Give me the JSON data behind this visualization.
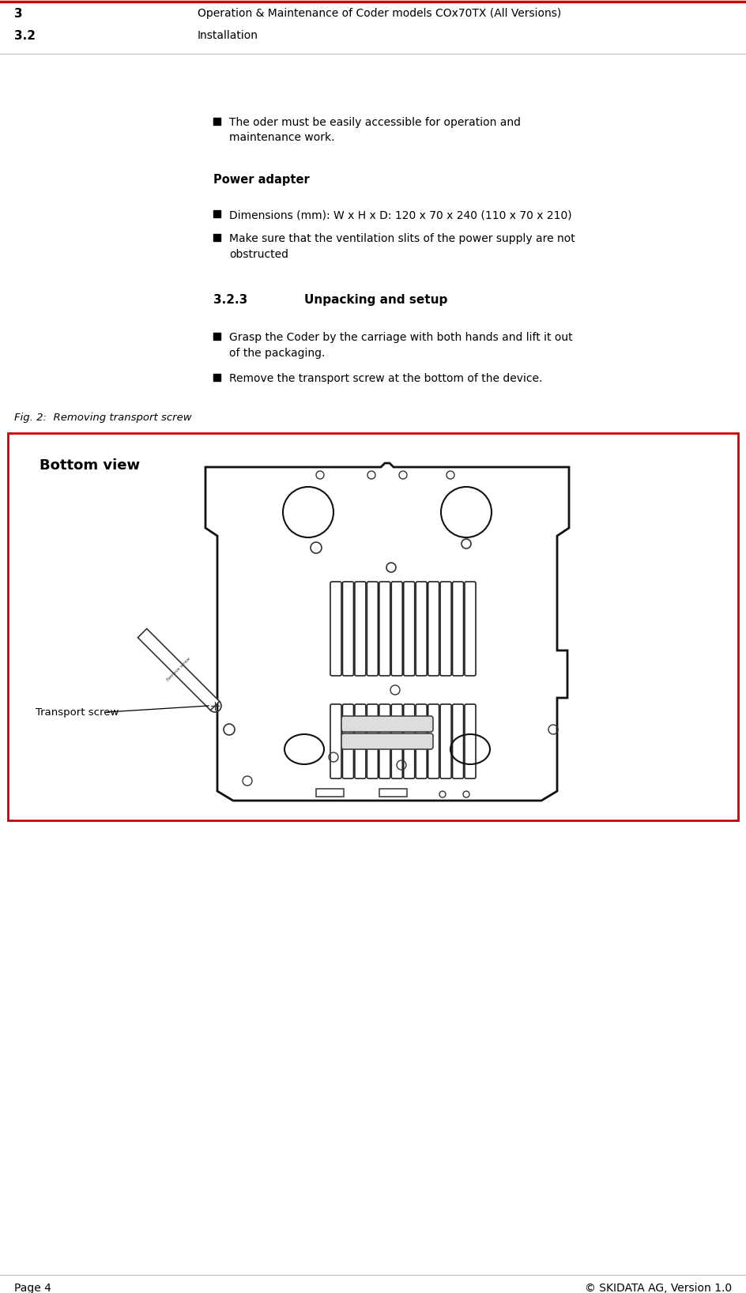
{
  "header_left_1": "3",
  "header_right_1": "Operation & Maintenance of Coder models COx70TX (All Versions)",
  "header_left_2": "3.2",
  "header_right_2": "Installation",
  "bullet1": "The oder must be easily accessible for operation and\nmaintenance work.",
  "section_power": "Power adapter",
  "bullet_power1": "Dimensions (mm): W x H x D: 120 x 70 x 240 (110 x 70 x 210)",
  "bullet_power2": "Make sure that the ventilation slits of the power supply are not\nobstructed",
  "section_323": "3.2.3",
  "section_323_title": "Unpacking and setup",
  "bullet_unpack1": "Grasp the Coder by the carriage with both hands and lift it out\nof the packaging.",
  "bullet_unpack2": "Remove the transport screw at the bottom of the device.",
  "fig_caption": "Fig. 2:  Removing transport screw",
  "fig_label_bottom": "Bottom view",
  "fig_label_transport": "Transport screw",
  "footer_left": "Page 4",
  "footer_right": "© SKIDATA AG, Version 1.0",
  "bg_color": "#ffffff",
  "text_color": "#000000",
  "header_line_color": "#cc0000",
  "fig_border_color": "#cc0000"
}
